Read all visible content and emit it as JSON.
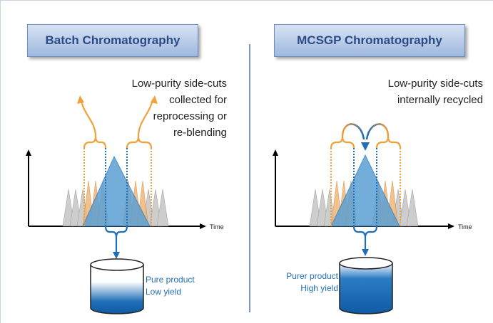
{
  "left": {
    "title": "Batch Chromatography",
    "note_lines": [
      "Low-purity side-cuts",
      "collected for",
      "reprocessing or",
      "re-blending"
    ],
    "result_lines": [
      "Pure product",
      "Low yield"
    ],
    "axis_label": "Time"
  },
  "right": {
    "title": "MCSGP Chromatography",
    "note_lines": [
      "Low-purity side-cuts",
      "internally recycled"
    ],
    "result_lines": [
      "Purer product",
      "High yield"
    ],
    "axis_label": "Time"
  },
  "colors": {
    "title_text": "#2c4a86",
    "main_peak": "#5b9fd4",
    "side_peak": "#f2b77a",
    "impurity_peak": "#c8c8c8",
    "product_line": "#1f6fb8",
    "sidecut_line": "#f0a13c"
  }
}
